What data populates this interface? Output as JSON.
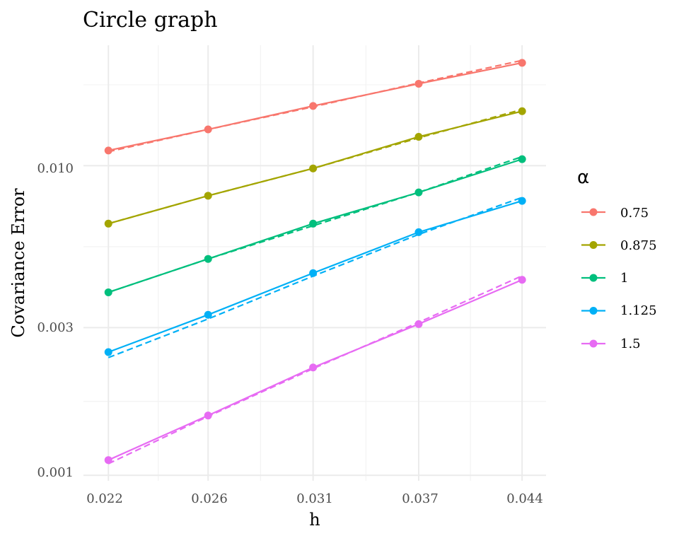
{
  "chart_data": {
    "type": "line",
    "title": "Circle graph",
    "xlabel": "h",
    "ylabel": "Covariance Error",
    "x_scale": "log",
    "y_scale": "log",
    "x": [
      0.022,
      0.026,
      0.031,
      0.037,
      0.044
    ],
    "x_tick_labels": [
      "0.022",
      "0.026",
      "0.031",
      "0.037",
      "0.044"
    ],
    "y_ticks": [
      0.001,
      0.003,
      0.01
    ],
    "y_tick_labels": [
      "0.001",
      "0.003",
      "0.010"
    ],
    "xlim": [
      0.0211,
      0.0458
    ],
    "ylim": [
      0.00096,
      0.0245
    ],
    "legend_title": "α",
    "legend_position": "right",
    "series": [
      {
        "name": "0.75",
        "color": "#F8766D",
        "values": [
          0.0112,
          0.0131,
          0.0156,
          0.0184,
          0.0215
        ],
        "fit_values": [
          0.0111,
          0.0131,
          0.0155,
          0.0185,
          0.0219
        ]
      },
      {
        "name": "0.875",
        "color": "#A3A500",
        "values": [
          0.0065,
          0.008,
          0.0098,
          0.0124,
          0.015
        ],
        "fit_values": [
          0.0065,
          0.008,
          0.0098,
          0.0123,
          0.0152
        ]
      },
      {
        "name": "1",
        "color": "#00BF7D",
        "values": [
          0.0039,
          0.005,
          0.0065,
          0.0082,
          0.0105
        ],
        "fit_values": [
          0.0039,
          0.005,
          0.0064,
          0.0082,
          0.0107
        ]
      },
      {
        "name": "1.125",
        "color": "#00B0F6",
        "values": [
          0.0025,
          0.0033,
          0.0045,
          0.0061,
          0.0077
        ],
        "fit_values": [
          0.0024,
          0.0032,
          0.0044,
          0.006,
          0.0079
        ]
      },
      {
        "name": "1.5",
        "color": "#E76BF3",
        "values": [
          0.00112,
          0.00156,
          0.00223,
          0.00308,
          0.00428
        ],
        "fit_values": [
          0.00109,
          0.00155,
          0.00221,
          0.00312,
          0.00441
        ]
      }
    ]
  }
}
